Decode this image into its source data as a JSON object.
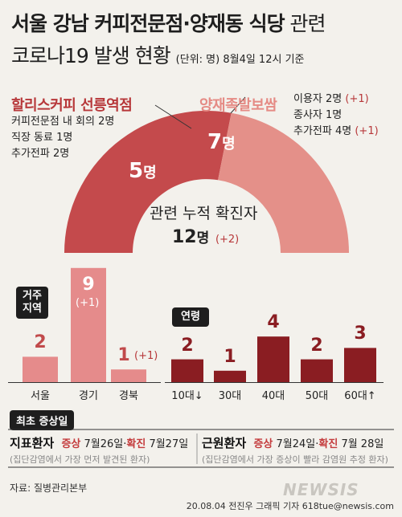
{
  "title": {
    "line1_bold": "서울 강남 커피전문점·양재동 식당",
    "line1_light": " 관련",
    "line2": "코로나19 발생 현황",
    "note": "(단위: 명) 8월4일 12시 기준"
  },
  "arc": {
    "left": {
      "name": "할리스커피 선릉역점",
      "details": [
        "커피전문점 내 회의 2명",
        "직장 동료 1명",
        "추가전파 2명"
      ],
      "count": "5",
      "unit": "명",
      "color": "#c44a4c"
    },
    "right": {
      "name": "양재족발보쌈",
      "details": [
        {
          "text": "이용자 2명",
          "plus": "(+1)"
        },
        {
          "text": "종사자 1명",
          "plus": ""
        },
        {
          "text": "추가전파 4명",
          "plus": "(+1)"
        }
      ],
      "count": "7",
      "unit": "명",
      "color": "#e49089"
    },
    "total_label": "관련 누적 확진자",
    "total_count": "12",
    "total_unit": "명",
    "total_plus": "(+2)"
  },
  "chart_data": [
    {
      "type": "bar",
      "title": "거주 지역",
      "categories": [
        "서울",
        "경기",
        "경북"
      ],
      "values": [
        2,
        9,
        1
      ],
      "annotations": [
        "",
        "(+1)",
        "(+1)"
      ],
      "color": "#e58b8b"
    },
    {
      "type": "bar",
      "title": "연령",
      "categories": [
        "10대↓",
        "30대",
        "40대",
        "50대",
        "60대↑"
      ],
      "values": [
        2,
        1,
        4,
        2,
        3
      ],
      "color": "#8a1d22"
    }
  ],
  "first_symptom": {
    "title": "최초 증상일",
    "patients": [
      {
        "name": "지표환자",
        "k1": "증상",
        "d1": "7월26일",
        "sep": "·",
        "k2": "확진",
        "d2": "7월27일",
        "sub": "(집단감염에서 가장 먼저 발견된 환자)"
      },
      {
        "name": "근원환자",
        "k1": "증상",
        "d1": "7월24일",
        "sep": "·",
        "k2": "확진",
        "d2": "7월 28일",
        "sub": "(집단감염에서 가장 증상이 빨라 감염원 추정 환자)"
      }
    ]
  },
  "source": "자료: 질병관리본부",
  "credit": "20.08.04 전진우 그래픽 기자 618tue@newsis.com",
  "watermark": "NEWSIS"
}
